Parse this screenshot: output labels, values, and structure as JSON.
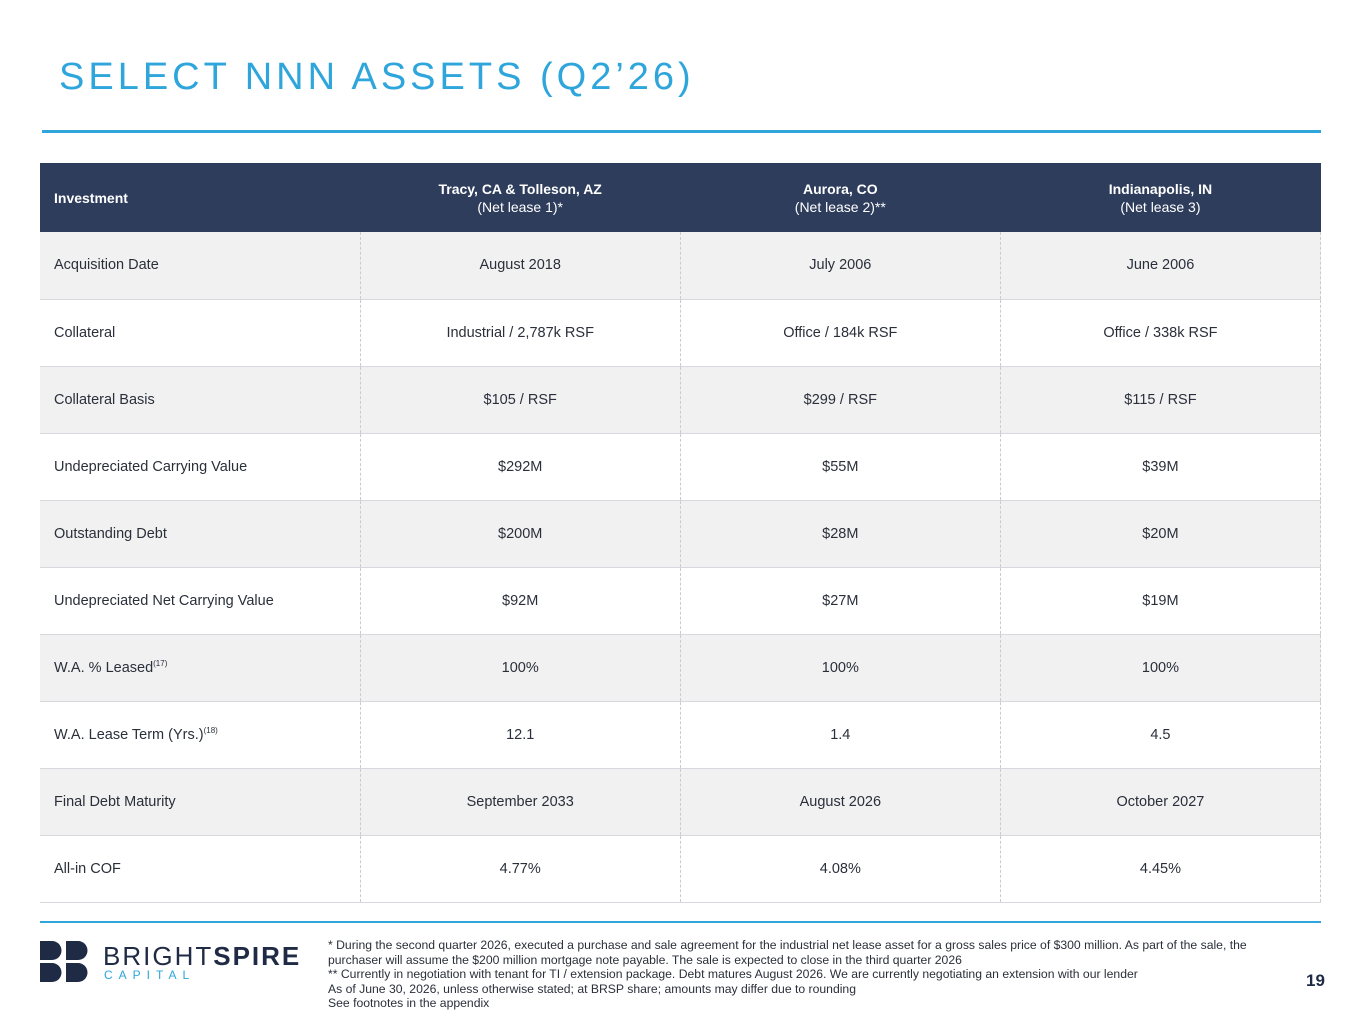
{
  "slide": {
    "title": "SELECT NNN ASSETS (Q2’26)",
    "page_number": "19"
  },
  "table": {
    "header": {
      "label": "Investment",
      "columns": [
        {
          "name": "Tracy, CA & Tolleson, AZ",
          "sub": "(Net lease 1)*"
        },
        {
          "name": "Aurora, CO",
          "sub": "(Net lease 2)**"
        },
        {
          "name": "Indianapolis, IN",
          "sub": "(Net lease 3)"
        }
      ]
    },
    "rows": [
      {
        "label": "Acquisition Date",
        "sup": "",
        "values": [
          "August 2018",
          "July 2006",
          "June 2006"
        ]
      },
      {
        "label": "Collateral",
        "sup": "",
        "values": [
          "Industrial / 2,787k RSF",
          "Office / 184k RSF",
          "Office / 338k RSF"
        ]
      },
      {
        "label": "Collateral Basis",
        "sup": "",
        "values": [
          "$105 / RSF",
          "$299 / RSF",
          "$115 / RSF"
        ]
      },
      {
        "label": "Undepreciated Carrying Value",
        "sup": "",
        "values": [
          "$292M",
          "$55M",
          "$39M"
        ]
      },
      {
        "label": "Outstanding Debt",
        "sup": "",
        "values": [
          "$200M",
          "$28M",
          "$20M"
        ]
      },
      {
        "label": "Undepreciated Net Carrying Value",
        "sup": "",
        "values": [
          "$92M",
          "$27M",
          "$19M"
        ]
      },
      {
        "label": "W.A. % Leased",
        "sup": "(17)",
        "values": [
          "100%",
          "100%",
          "100%"
        ]
      },
      {
        "label": "W.A. Lease Term (Yrs.)",
        "sup": "(18)",
        "values": [
          "12.1",
          "1.4",
          "4.5"
        ]
      },
      {
        "label": "Final Debt Maturity",
        "sup": "",
        "values": [
          "September 2033",
          "August 2026",
          "October 2027"
        ]
      },
      {
        "label": "All-in COF",
        "sup": "",
        "values": [
          "4.77%",
          "4.08%",
          "4.45%"
        ]
      }
    ]
  },
  "logo": {
    "word_light": "BRIGHT",
    "word_bold": "SPIRE",
    "sub": "CAPITAL",
    "navy": "#1f2a44",
    "blue": "#2ea6dc"
  },
  "footnotes": [
    "*   During the second quarter 2026, executed a purchase and sale agreement for the industrial net lease asset for a gross sales price of $300 million. As part of the sale, the purchaser will assume the $200 million mortgage note payable. The sale is expected to close in the third quarter 2026",
    "**  Currently in negotiation with tenant for TI / extension package. Debt matures August 2026. We are currently negotiating an extension with our lender",
    "As of June 30, 2026, unless otherwise stated; at BRSP share; amounts may differ due to rounding",
    "See footnotes in the appendix"
  ],
  "colors": {
    "accent": "#2ea6dc",
    "header_bg": "#2e3d5c",
    "row_shade": "#f1f1f2"
  }
}
